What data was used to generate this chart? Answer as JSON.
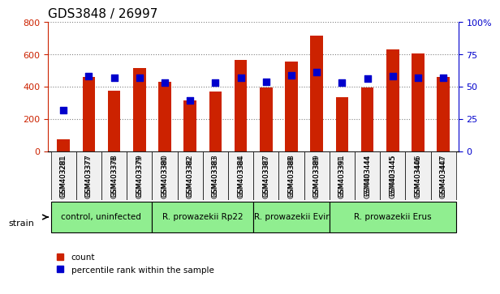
{
  "title": "GDS3848 / 26997",
  "samples": [
    "GSM403281",
    "GSM403377",
    "GSM403378",
    "GSM403379",
    "GSM403380",
    "GSM403382",
    "GSM403383",
    "GSM403384",
    "GSM403387",
    "GSM403388",
    "GSM403389",
    "GSM403391",
    "GSM403444",
    "GSM403445",
    "GSM403446",
    "GSM403447"
  ],
  "counts": [
    75,
    460,
    375,
    515,
    430,
    315,
    370,
    565,
    395,
    555,
    715,
    335,
    395,
    630,
    605,
    460
  ],
  "percentiles": [
    32,
    58,
    57,
    57,
    53,
    39,
    53,
    57,
    54,
    59,
    61,
    53,
    56,
    58,
    57,
    57
  ],
  "groups": [
    {
      "label": "control, uninfected",
      "start": 0,
      "end": 3,
      "color": "#90EE90"
    },
    {
      "label": "R. prowazekii Rp22",
      "start": 4,
      "end": 7,
      "color": "#90EE90"
    },
    {
      "label": "R. prowazekii Evir",
      "start": 8,
      "end": 10,
      "color": "#90EE90"
    },
    {
      "label": "R. prowazekii Erus",
      "start": 11,
      "end": 15,
      "color": "#90EE90"
    }
  ],
  "bar_color": "#CC2200",
  "dot_color": "#0000CC",
  "left_axis_color": "#CC2200",
  "right_axis_color": "#0000CC",
  "ylim_left": [
    0,
    800
  ],
  "ylim_right": [
    0,
    100
  ],
  "yticks_left": [
    0,
    200,
    400,
    600,
    800
  ],
  "yticks_right": [
    0,
    25,
    50,
    75,
    100
  ],
  "legend_count_label": "count",
  "legend_pct_label": "percentile rank within the sample",
  "strain_label": "strain",
  "bg_color": "#F0F0F0"
}
